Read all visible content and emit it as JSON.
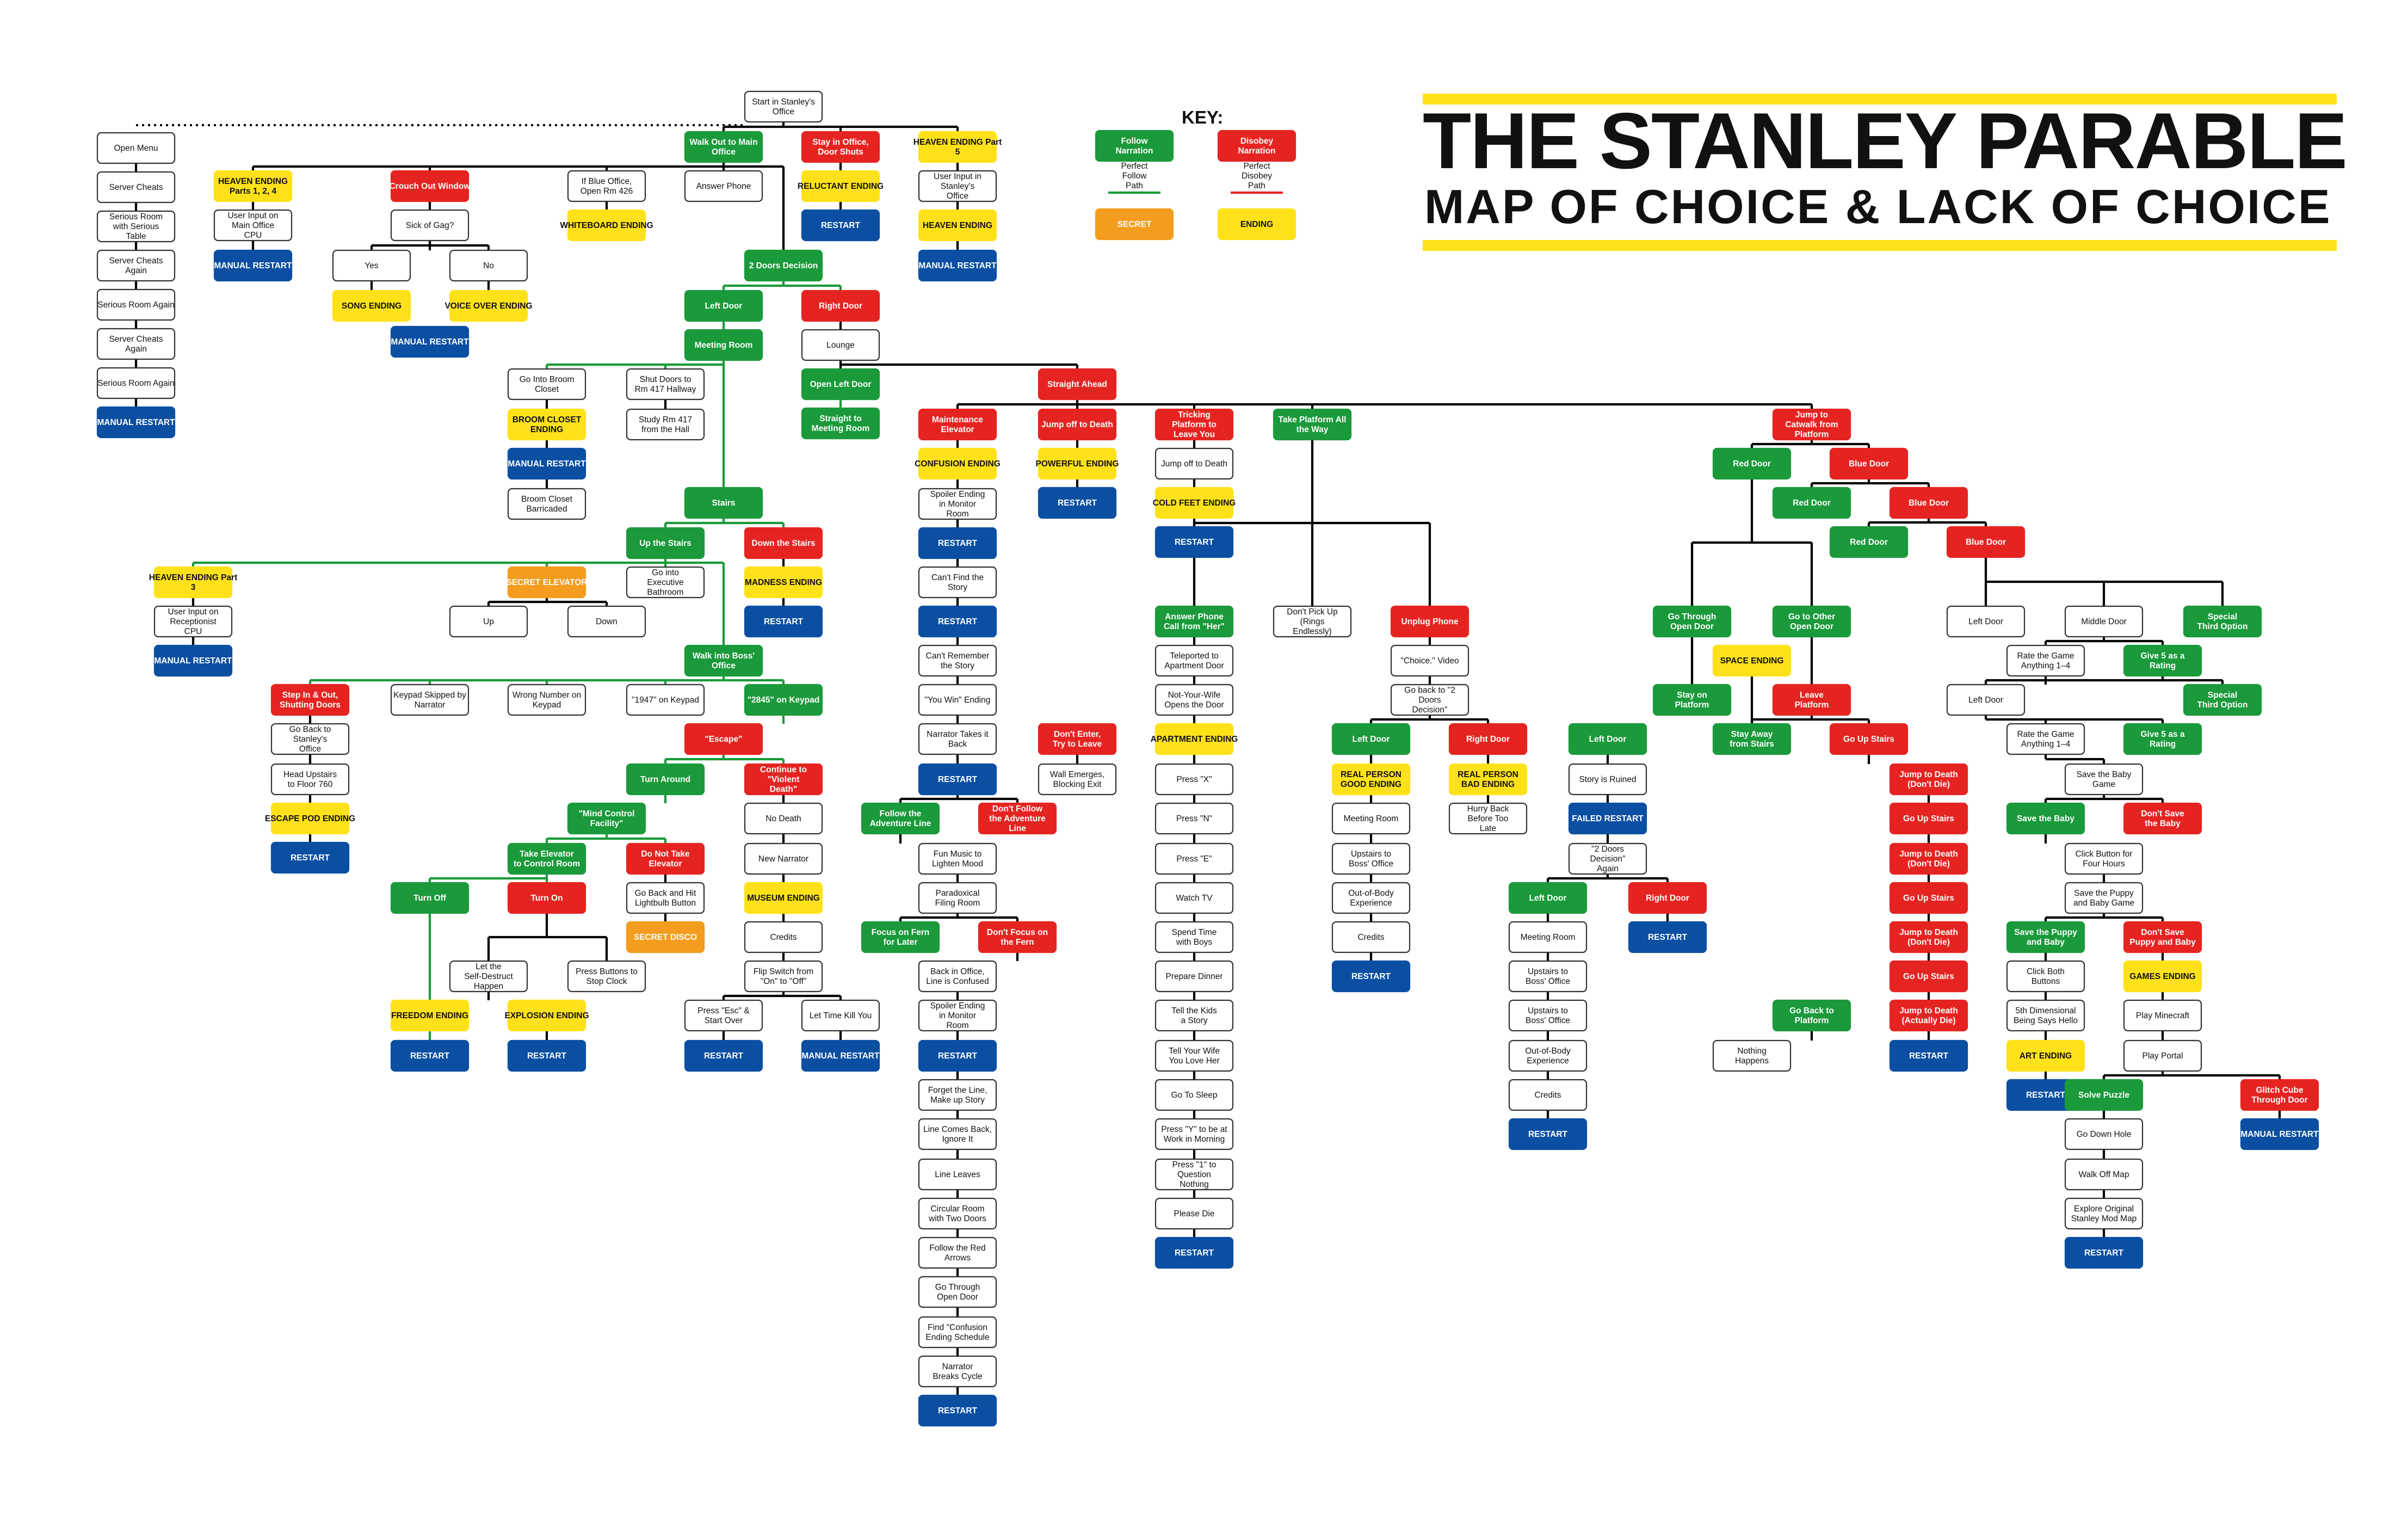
{
  "title": {
    "main": "THE STANLEY PARABLE",
    "sub": "MAP OF CHOICE & LACK OF CHOICE"
  },
  "key": {
    "heading": "KEY:",
    "follow": "Follow Narration",
    "disobey": "Disobey Narration",
    "perfect_follow": "Perfect Follow Path",
    "perfect_disobey": "Perfect Disobey Path",
    "secret": "SECRET",
    "ending": "ENDING"
  },
  "colors": {
    "follow": "#1a9a3a",
    "disobey": "#e52421",
    "ending": "#ffe11a",
    "secret": "#f39c1e",
    "restart": "#0b4fa2",
    "neutral": "#ffffff"
  },
  "nodes": {
    "start": "Start in Stanley's Office",
    "walk_out": "Walk Out to Main Office",
    "stay_office": "Stay in Office, Door Shuts",
    "heaven5": "HEAVEN ENDING Part 5",
    "open_menu": "Open Menu",
    "server_cheats": "Server Cheats",
    "serious_room_table": "Serious Room with Serious Table",
    "server_cheats_again": "Server Cheats Again",
    "serious_room_again": "Serious Room Again",
    "server_cheats_again2": "Server Cheats Again",
    "serious_room_again2": "Serious Room Again",
    "manual_restart_menu": "MANUAL RESTART",
    "heaven124": "HEAVEN ENDING Parts 1, 2, 4",
    "cpu_main": "User Input on Main Office CPU",
    "manual_restart_h": "MANUAL RESTART",
    "crouch": "Crouch Out Window",
    "gag": "Sick of Gag?",
    "yes": "Yes",
    "no": "No",
    "song": "SONG ENDING",
    "voice_over": "VOICE OVER ENDING",
    "manual_restart_gag": "MANUAL RESTART",
    "blue_office": "If Blue Office, Open Rm 426",
    "answer_phone_top": "Answer Phone",
    "whiteboard": "WHITEBOARD ENDING",
    "reluctant": "RELUCTANT ENDING",
    "restart_reluctant": "RESTART",
    "cpu_stanley": "User Input in Stanley's Office",
    "heaven_ending": "HEAVEN ENDING",
    "manual_restart_heaven": "MANUAL RESTART",
    "two_doors": "2 Doors Decision",
    "left_door": "Left Door",
    "right_door": "Right Door",
    "lounge": "Lounge",
    "meeting_room": "Meeting Room",
    "broom_closet": "Go Into Broom Closet",
    "broom_ending": "BROOM CLOSET ENDING",
    "manual_restart_broom": "MANUAL RESTART",
    "broom_barricaded": "Broom Closet Barricaded",
    "shut_doors": "Shut Doors to Rm 417 Hallway",
    "study_417": "Study Rm 417 from the Hall",
    "open_left_door": "Open Left Door",
    "straight_meeting": "Straight to Meeting Room",
    "straight_ahead": "Straight Ahead",
    "maintenance": "Maintenance Elevator",
    "confusion": "CONFUSION ENDING",
    "spoiler1": "Spoiler Ending in Monitor Room",
    "restart_c1": "RESTART",
    "cant_find": "Can't Find the Story",
    "restart_c2": "RESTART",
    "cant_remember": "Can't Remember the Story",
    "you_win": "\"You Win\" Ending",
    "narrator_takes": "Narrator Takes it Back",
    "restart_c3": "RESTART",
    "jump_death": "Jump off to Death",
    "powerful": "POWERFUL ENDING",
    "restart_powerful": "RESTART",
    "tricking": "Tricking Platform to Leave You",
    "jump_death2": "Jump off to Death",
    "cold_feet": "COLD FEET ENDING",
    "restart_cold": "RESTART",
    "take_platform": "Take Platform All the Way",
    "jump_catwalk": "Jump to Catwalk from Platform",
    "stairs": "Stairs",
    "up_stairs": "Up the Stairs",
    "down_stairs": "Down the Stairs",
    "madness": "MADNESS ENDING",
    "restart_madness": "RESTART",
    "heaven3": "HEAVEN ENDING Part 3",
    "receptionist": "User Input on Receptionist CPU",
    "manual_restart_h3": "MANUAL RESTART",
    "secret_elevator": "SECRET ELEVATOR",
    "exec_bathroom": "Go into Executive Bathroom",
    "up": "Up",
    "down": "Down",
    "walk_boss": "Walk into Boss' Office",
    "step_in_out": "Step In & Out, Shutting Doors",
    "keypad_skipped": "Keypad Skipped by Narrator",
    "wrong_number": "Wrong Number on Keypad",
    "k1947": "\"1947\" on Keypad",
    "k2845": "\"2845\" on Keypad",
    "go_back_office": "Go Back to Stanley's Office",
    "head_upstairs": "Head Upstairs to Floor 760",
    "escape_pod": "ESCAPE POD ENDING",
    "restart_escape": "RESTART",
    "escape": "\"Escape\"",
    "turn_around": "Turn Around",
    "continue_violent": "Continue to \"Violent Death\"",
    "mind_control": "\"Mind Control Facility\"",
    "take_elevator": "Take Elevator to Control Room",
    "do_not_take": "Do Not Take Elevator",
    "go_back_hit": "Go Back and Hit Lightbulb Button",
    "secret_disco": "SECRET DISCO",
    "turn_off": "Turn Off",
    "turn_on": "Turn On",
    "freedom": "FREEDOM ENDING",
    "restart_freedom": "RESTART",
    "self_destruct": "Let the Self-Destruct Happen",
    "press_buttons": "Press Buttons to Stop Clock",
    "explosion": "EXPLOSION ENDING",
    "restart_explosion": "RESTART",
    "no_death": "No Death",
    "new_narrator": "New Narrator",
    "museum": "MUSEUM ENDING",
    "credits_m": "Credits",
    "flip_switch": "Flip Switch from \"On\" to \"Off\"",
    "press_esc": "Press \"Esc\" & Start Over",
    "let_time": "Let Time Kill You",
    "restart_esc": "RESTART",
    "manual_restart_time": "MANUAL RESTART",
    "follow_adventure": "Follow the Adventure Line",
    "dont_follow_adventure": "Don't Follow the Adventure Line",
    "fun_music": "Fun Music to Lighten Mood",
    "paradoxical": "Paradoxical Filing Room",
    "focus_fern": "Focus on Fern for Later",
    "dont_focus_fern": "Don't Focus on the Fern",
    "back_office_confused": "Back in Office, Line is Confused",
    "spoiler2": "Spoiler Ending in Monitor Room",
    "restart_c4": "RESTART",
    "forget_line": "Forget the Line, Make up Story",
    "line_comes_back": "Line Comes Back, Ignore It",
    "line_leaves": "Line Leaves",
    "circular_room": "Circular Room with Two Doors",
    "follow_arrows": "Follow the Red Arrows",
    "open_door": "Go Through Open Door",
    "find_confusion": "Find \"Confusion Ending Schedule",
    "narrator_breaks": "Narrator Breaks Cycle",
    "restart_c5": "RESTART",
    "answer_phone": "Answer Phone Call from \"Her\"",
    "dont_pick_up": "Don't Pick Up (Rings Endlessly)",
    "unplug_phone": "Unplug Phone",
    "teleported": "Teleported to Apartment Door",
    "not_your_wife": "Not-Your-Wife Opens the Door",
    "dont_enter": "Don't Enter, Try to Leave",
    "apartment": "APARTMENT ENDING",
    "wall_emerges": "Wall Emerges, Blocking Exit",
    "press_x": "Press \"X\"",
    "press_n": "Press \"N\"",
    "press_e": "Press \"E\"",
    "watch_tv": "Watch TV",
    "spend_time": "Spend Time with Boys",
    "prepare_dinner": "Prepare Dinner",
    "tell_kids": "Tell the Kids a Story",
    "tell_wife": "Tell Your Wife You Love Her",
    "go_sleep": "Go To Sleep",
    "press_y": "Press \"Y\" to be at Work in Morning",
    "press_1": "Press \"1\" to Question Nothing",
    "please_die": "Please Die",
    "restart_apartment": "RESTART",
    "choice_video": "\"Choice.\" Video",
    "go_back_2doors": "Go back to \"2 Doors Decision\"",
    "left_door_rp": "Left Door",
    "right_door_rp": "Right Door",
    "real_person": "REAL PERSON GOOD ENDING",
    "real_person_bad": "REAL PERSON BAD ENDING",
    "hurry_back": "Hurry Back Before Too Late",
    "meeting_room_rp": "Meeting Room",
    "upstairs_boss_rp": "Upstairs to Boss' Office",
    "oob_rp": "Out-of-Body Experience",
    "credits_rp": "Credits",
    "restart_rp": "RESTART",
    "left_door_ruined": "Left Door",
    "story_ruined": "Story is Ruined",
    "failed_restart": "FAILED RESTART",
    "two_doors_again": "\"2 Doors Decision\" Again",
    "left_door_again": "Left Door",
    "right_door_again": "Right Door",
    "restart_again": "RESTART",
    "meeting_room_again": "Meeting Room",
    "upstairs_boss_a": "Upstairs to Boss' Office",
    "upstairs_boss_b": "Upstairs to Boss' Office",
    "oob_again": "Out-of-Body Experience",
    "credits_again": "Credits",
    "restart_again2": "RESTART",
    "red_door1": "Red Door",
    "blue_door1": "Blue Door",
    "red_door2": "Red Door",
    "blue_door2": "Blue Door",
    "red_door3": "Red Door",
    "blue_door3": "Blue Door",
    "go_through_open": "Go Through Open Door",
    "go_other_open": "Go to Other Open Door",
    "space_ending": "SPACE ENDING",
    "stay_platform": "Stay on Platform",
    "leave_platform": "Leave Platform",
    "stay_away_stairs": "Stay Away from Stairs",
    "go_up_stairs": "Go Up Stairs",
    "jump_dont_die1": "Jump to Death (Don't Die)",
    "go_up_stairs1": "Go Up Stairs",
    "jump_dont_die2": "Jump to Death (Don't Die)",
    "go_up_stairs2": "Go Up Stairs",
    "jump_dont_die3": "Jump to Death (Don't Die)",
    "go_up_stairs3": "Go Up Stairs",
    "jump_actually_die": "Jump to Death (Actually Die)",
    "restart_jump": "RESTART",
    "go_back_platform": "Go Back to Platform",
    "nothing_happens": "Nothing Happens",
    "left_door_g": "Left Door",
    "middle_door": "Middle Door",
    "special_third1": "Special Third Option",
    "rate_game1": "Rate the Game Anything 1–4",
    "give5_1": "Give 5 as a Rating",
    "left_door_g2": "Left Door",
    "special_third2": "Special Third Option",
    "rate_game2": "Rate the Game Anything 1–4",
    "give5_2": "Give 5 as a Rating",
    "save_baby_game": "Save the Baby Game",
    "save_baby": "Save the Baby",
    "dont_save_baby": "Don't Save the Baby",
    "click_button": "Click Button for Four Hours",
    "save_puppy_game": "Save the Puppy and Baby Game",
    "save_puppy": "Save the Puppy and Baby",
    "dont_save_puppy": "Don't Save Puppy and Baby",
    "click_both": "Click Both Buttons",
    "five_dimensional": "5th Dimensional Being Says Hello",
    "art_ending": "ART ENDING",
    "restart_art": "RESTART",
    "games_ending": "GAMES ENDING",
    "play_minecraft": "Play Minecraft",
    "play_portal": "Play Portal",
    "solve_puzzle": "Solve Puzzle",
    "glitch_cube": "Glitch Cube Through Door",
    "go_down_hole": "Go Down Hole",
    "walk_off_map": "Walk Off Map",
    "explore_mod": "Explore Original Stanley Mod Map",
    "restart_mod": "RESTART",
    "manual_restart_glitch": "MANUAL RESTART"
  }
}
